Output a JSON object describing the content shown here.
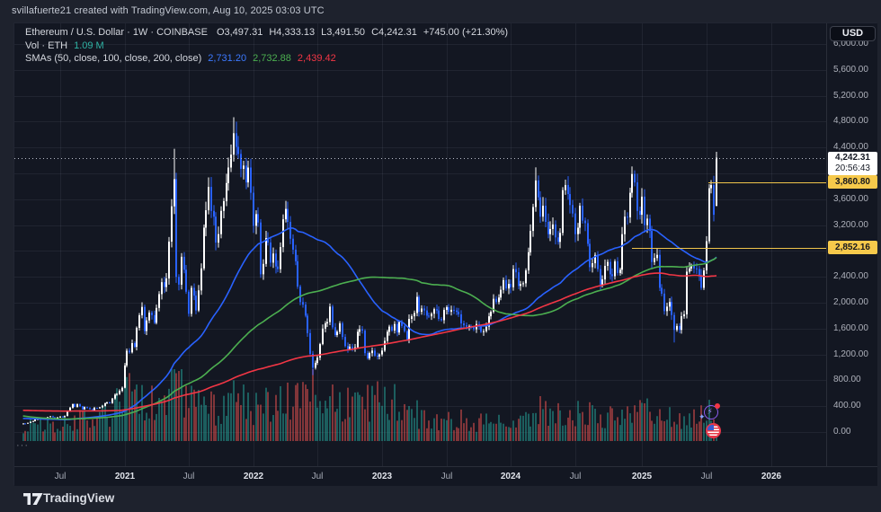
{
  "top_bar": {
    "attribution": "svillafuerte21 created with TradingView.com, Aug 10, 2025 03:03 UTC"
  },
  "legend": {
    "title": "Ethereum / U.S. Dollar · 1W · COINBASE",
    "ohlc": {
      "open_label": "O",
      "open": "3,497.31",
      "high_label": "H",
      "high": "4,333.13",
      "low_label": "L",
      "low": "3,491.50",
      "close_label": "C",
      "close": "4,242.31",
      "change": "+745.00 (+21.30%)"
    },
    "volume_row": {
      "label": "Vol · ETH",
      "value": "1.09 M"
    },
    "sma_row": {
      "label": "SMAs (50, close, 100, close, 200, close)",
      "sma50": "2,731.20",
      "sma100": "2,732.88",
      "sma200": "2,439.42"
    }
  },
  "price_axis": {
    "currency_button": "USD",
    "current_price": "4,242.31",
    "countdown": "20:56:43",
    "levels": [
      {
        "text": "3,860.80",
        "value": 3860.8,
        "x_start": 772
      },
      {
        "text": "2,852.16",
        "value": 2852.16,
        "x_start": 687
      }
    ],
    "ticks": [
      {
        "t": "6,000.00",
        "v": 6000
      },
      {
        "t": "5,600.00",
        "v": 5600
      },
      {
        "t": "5,200.00",
        "v": 5200
      },
      {
        "t": "4,800.00",
        "v": 4800
      },
      {
        "t": "4,400.00",
        "v": 4400
      },
      {
        "t": "4,000.00",
        "v": 4000
      },
      {
        "t": "3,600.00",
        "v": 3600
      },
      {
        "t": "3,200.00",
        "v": 3200
      },
      {
        "t": "2,800.00",
        "v": 2800
      },
      {
        "t": "2,400.00",
        "v": 2400
      },
      {
        "t": "2,000.00",
        "v": 2000
      },
      {
        "t": "1,600.00",
        "v": 1600
      },
      {
        "t": "1,200.00",
        "v": 1200
      },
      {
        "t": "800.00",
        "v": 800
      },
      {
        "t": "400.00",
        "v": 400
      },
      {
        "t": "0.00",
        "v": 0
      }
    ]
  },
  "time_axis": {
    "ticks": [
      {
        "label": "Jul",
        "week": 15
      },
      {
        "label": "2021",
        "week": 41
      },
      {
        "label": "Jul",
        "week": 67
      },
      {
        "label": "2022",
        "week": 93
      },
      {
        "label": "Jul",
        "week": 119
      },
      {
        "label": "2023",
        "week": 145
      },
      {
        "label": "Jul",
        "week": 171
      },
      {
        "label": "2024",
        "week": 197
      },
      {
        "label": "Jul",
        "week": 223
      },
      {
        "label": "2025",
        "week": 250
      },
      {
        "label": "Jul",
        "week": 276
      },
      {
        "label": "2026",
        "week": 302
      }
    ]
  },
  "pane_more": {
    "label": "···"
  },
  "footer": {
    "brand": "TradingView"
  },
  "chart_data": {
    "type": "candlestick",
    "symbol": "Ethereum / U.S. Dollar",
    "exchange": "COINBASE",
    "interval": "1W",
    "current_candle": {
      "open": 3497.31,
      "high": 4333.13,
      "low": 3491.5,
      "close": 4242.31,
      "change": 745.0,
      "change_pct": 21.3,
      "volume_label": "1.09 M"
    },
    "ylim": [
      0,
      6000
    ],
    "first_open": 125,
    "weekly_closes": [
      133,
      131,
      143,
      158,
      171,
      194,
      201,
      210,
      195,
      218,
      231,
      244,
      229,
      225,
      228,
      239,
      233,
      247,
      322,
      377,
      433,
      390,
      429,
      398,
      352,
      385,
      371,
      353,
      340,
      375,
      368,
      383,
      405,
      444,
      460,
      449,
      518,
      577,
      590,
      637,
      685,
      1030,
      1258,
      1233,
      1375,
      1318,
      1612,
      1805,
      1935,
      1562,
      1726,
      1847,
      1808,
      1690,
      1919,
      2133,
      2317,
      2243,
      2375,
      2945,
      3490,
      3910,
      2400,
      2280,
      2710,
      2510,
      2170,
      1830,
      2230,
      2110,
      1880,
      2190,
      2530,
      3160,
      3430,
      3790,
      3420,
      3330,
      2930,
      3060,
      3420,
      3570,
      3850,
      4090,
      4290,
      4620,
      4410,
      4300,
      4070,
      4120,
      3860,
      4090,
      3700,
      3190,
      3370,
      3240,
      2440,
      2600,
      3000,
      2930,
      2620,
      2760,
      2560,
      2520,
      2860,
      3290,
      3450,
      3250,
      2990,
      2820,
      2640,
      2250,
      2010,
      1970,
      1800,
      1530,
      1210,
      995,
      1070,
      1150,
      1360,
      1600,
      1680,
      1700,
      1940,
      1620,
      1500,
      1550,
      1680,
      1470,
      1330,
      1280,
      1320,
      1280,
      1310,
      1550,
      1590,
      1570,
      1220,
      1140,
      1220,
      1260,
      1180,
      1170,
      1200,
      1260,
      1410,
      1550,
      1630,
      1570,
      1670,
      1540,
      1700,
      1640,
      1560,
      1430,
      1750,
      1790,
      1840,
      2090,
      1860,
      1910,
      1880,
      1800,
      1790,
      1830,
      1900,
      1880,
      1750,
      1730,
      1890,
      1930,
      1860,
      1890,
      1880,
      1860,
      1820,
      1680,
      1650,
      1630,
      1640,
      1620,
      1590,
      1670,
      1630,
      1550,
      1560,
      1630,
      1790,
      1860,
      2060,
      2010,
      2080,
      2200,
      2350,
      2220,
      2290,
      2240,
      2520,
      2470,
      2260,
      2290,
      2300,
      2500,
      2780,
      3110,
      3480,
      3890,
      3630,
      3330,
      3500,
      3250,
      3060,
      3140,
      3210,
      3010,
      2940,
      3080,
      3740,
      3820,
      3680,
      3510,
      3380,
      3060,
      3160,
      3500,
      3270,
      3230,
      2910,
      2550,
      2610,
      2740,
      2520,
      2280,
      2360,
      2570,
      2630,
      2440,
      2410,
      2640,
      2460,
      2510,
      3060,
      3330,
      3320,
      3700,
      3990,
      3860,
      3420,
      3360,
      3640,
      3200,
      3300,
      3110,
      2630,
      2690,
      2740,
      2230,
      2140,
      1870,
      1940,
      2010,
      1810,
      1580,
      1640,
      1580,
      1790,
      1820,
      2480,
      2530,
      2570,
      2530,
      2520,
      2420,
      2230,
      2500,
      2950,
      3770,
      3820,
      3360,
      4242
    ],
    "wick_overrides": {
      "high": {
        "61": 4380,
        "85": 4868,
        "207": 4093,
        "246": 4107
      },
      "low": {
        "117": 881,
        "263": 1385
      }
    },
    "sma_seed_anchors": [
      [
        0,
        50
      ],
      [
        20,
        300
      ],
      [
        35,
        320
      ],
      [
        44,
        750
      ],
      [
        48,
        1300
      ],
      [
        52,
        1050
      ],
      [
        60,
        700
      ],
      [
        70,
        450
      ],
      [
        85,
        230
      ],
      [
        95,
        110
      ],
      [
        105,
        140
      ],
      [
        115,
        250
      ],
      [
        125,
        300
      ],
      [
        135,
        180
      ],
      [
        145,
        145
      ],
      [
        152,
        230
      ],
      [
        159,
        135
      ]
    ],
    "smas": [
      {
        "period": 50,
        "color": "#2962ff",
        "last_value": 2731.2
      },
      {
        "period": 100,
        "color": "#4caf50",
        "last_value": 2732.88
      },
      {
        "period": 200,
        "color": "#f23645",
        "last_value": 2439.42
      }
    ],
    "volume_profile": [
      [
        0,
        16
      ],
      [
        15,
        20
      ],
      [
        30,
        26
      ],
      [
        38,
        40
      ],
      [
        41,
        62
      ],
      [
        44,
        50
      ],
      [
        50,
        46
      ],
      [
        58,
        55
      ],
      [
        61,
        70
      ],
      [
        62,
        78
      ],
      [
        64,
        55
      ],
      [
        70,
        44
      ],
      [
        75,
        40
      ],
      [
        80,
        36
      ],
      [
        85,
        44
      ],
      [
        90,
        40
      ],
      [
        95,
        38
      ],
      [
        100,
        42
      ],
      [
        105,
        40
      ],
      [
        110,
        52
      ],
      [
        115,
        66
      ],
      [
        118,
        70
      ],
      [
        122,
        50
      ],
      [
        128,
        44
      ],
      [
        134,
        40
      ],
      [
        140,
        42
      ],
      [
        145,
        44
      ],
      [
        149,
        52
      ],
      [
        152,
        40
      ],
      [
        158,
        30
      ],
      [
        165,
        26
      ],
      [
        172,
        24
      ],
      [
        180,
        22
      ],
      [
        190,
        20
      ],
      [
        197,
        24
      ],
      [
        203,
        28
      ],
      [
        207,
        34
      ],
      [
        212,
        30
      ],
      [
        220,
        26
      ],
      [
        228,
        32
      ],
      [
        235,
        26
      ],
      [
        242,
        24
      ],
      [
        246,
        28
      ],
      [
        250,
        30
      ],
      [
        254,
        34
      ],
      [
        258,
        28
      ],
      [
        263,
        30
      ],
      [
        268,
        24
      ],
      [
        272,
        26
      ],
      [
        275,
        30
      ],
      [
        277,
        36
      ],
      [
        279,
        30
      ],
      [
        280,
        18
      ]
    ],
    "current_price_line": 4242.31,
    "colors": {
      "background": "#131722",
      "candle_up": "#ffffff",
      "candle_down": "#2962ff",
      "volume_up": "rgba(38,166,154,0.5)",
      "volume_down": "rgba(239,83,80,0.5)",
      "grid": "rgba(151,160,180,0.10)",
      "current_line": "#b9bdc9",
      "level_line": "#f0c44b"
    }
  }
}
